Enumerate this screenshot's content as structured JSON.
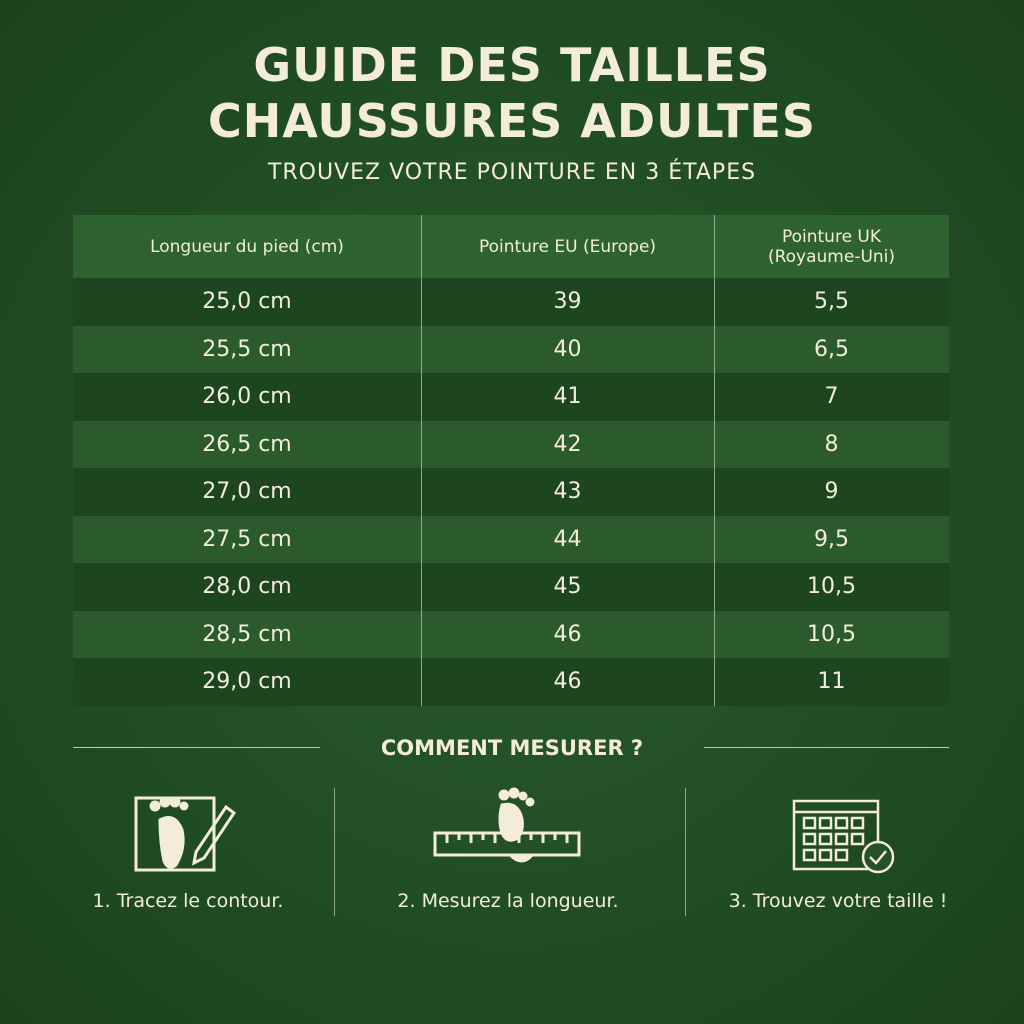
{
  "header": {
    "title_lines": [
      "GUIDE DES TAILLES",
      "CHAUSSURES ADULTES"
    ],
    "subtitle": "TROUVEZ VOTRE POINTURE EN 3 ÉTAPES"
  },
  "table": {
    "headers": [
      [
        "Longueur du pied (cm)"
      ],
      [
        "Pointure EU (Europe)"
      ],
      [
        "Pointure UK",
        "(Royaume-Uni)"
      ]
    ],
    "rows": [
      [
        "25,0 cm",
        "39",
        "5,5"
      ],
      [
        "25,5 cm",
        "40",
        "6,5"
      ],
      [
        "26,0 cm",
        "41",
        "7"
      ],
      [
        "26,5 cm",
        "42",
        "8"
      ],
      [
        "27,0 cm",
        "43",
        "9"
      ],
      [
        "27,5 cm",
        "44",
        "9,5"
      ],
      [
        "28,0 cm",
        "45",
        "10,5"
      ],
      [
        "28,5 cm",
        "46",
        "10,5"
      ],
      [
        "29,0 cm",
        "46",
        "11"
      ]
    ]
  },
  "howto": {
    "title": "COMMENT MESURER ?",
    "steps": [
      "1. Tracez le contour.",
      "2. Mesurez la longueur.",
      "3. Trouvez votre taille !"
    ]
  }
}
